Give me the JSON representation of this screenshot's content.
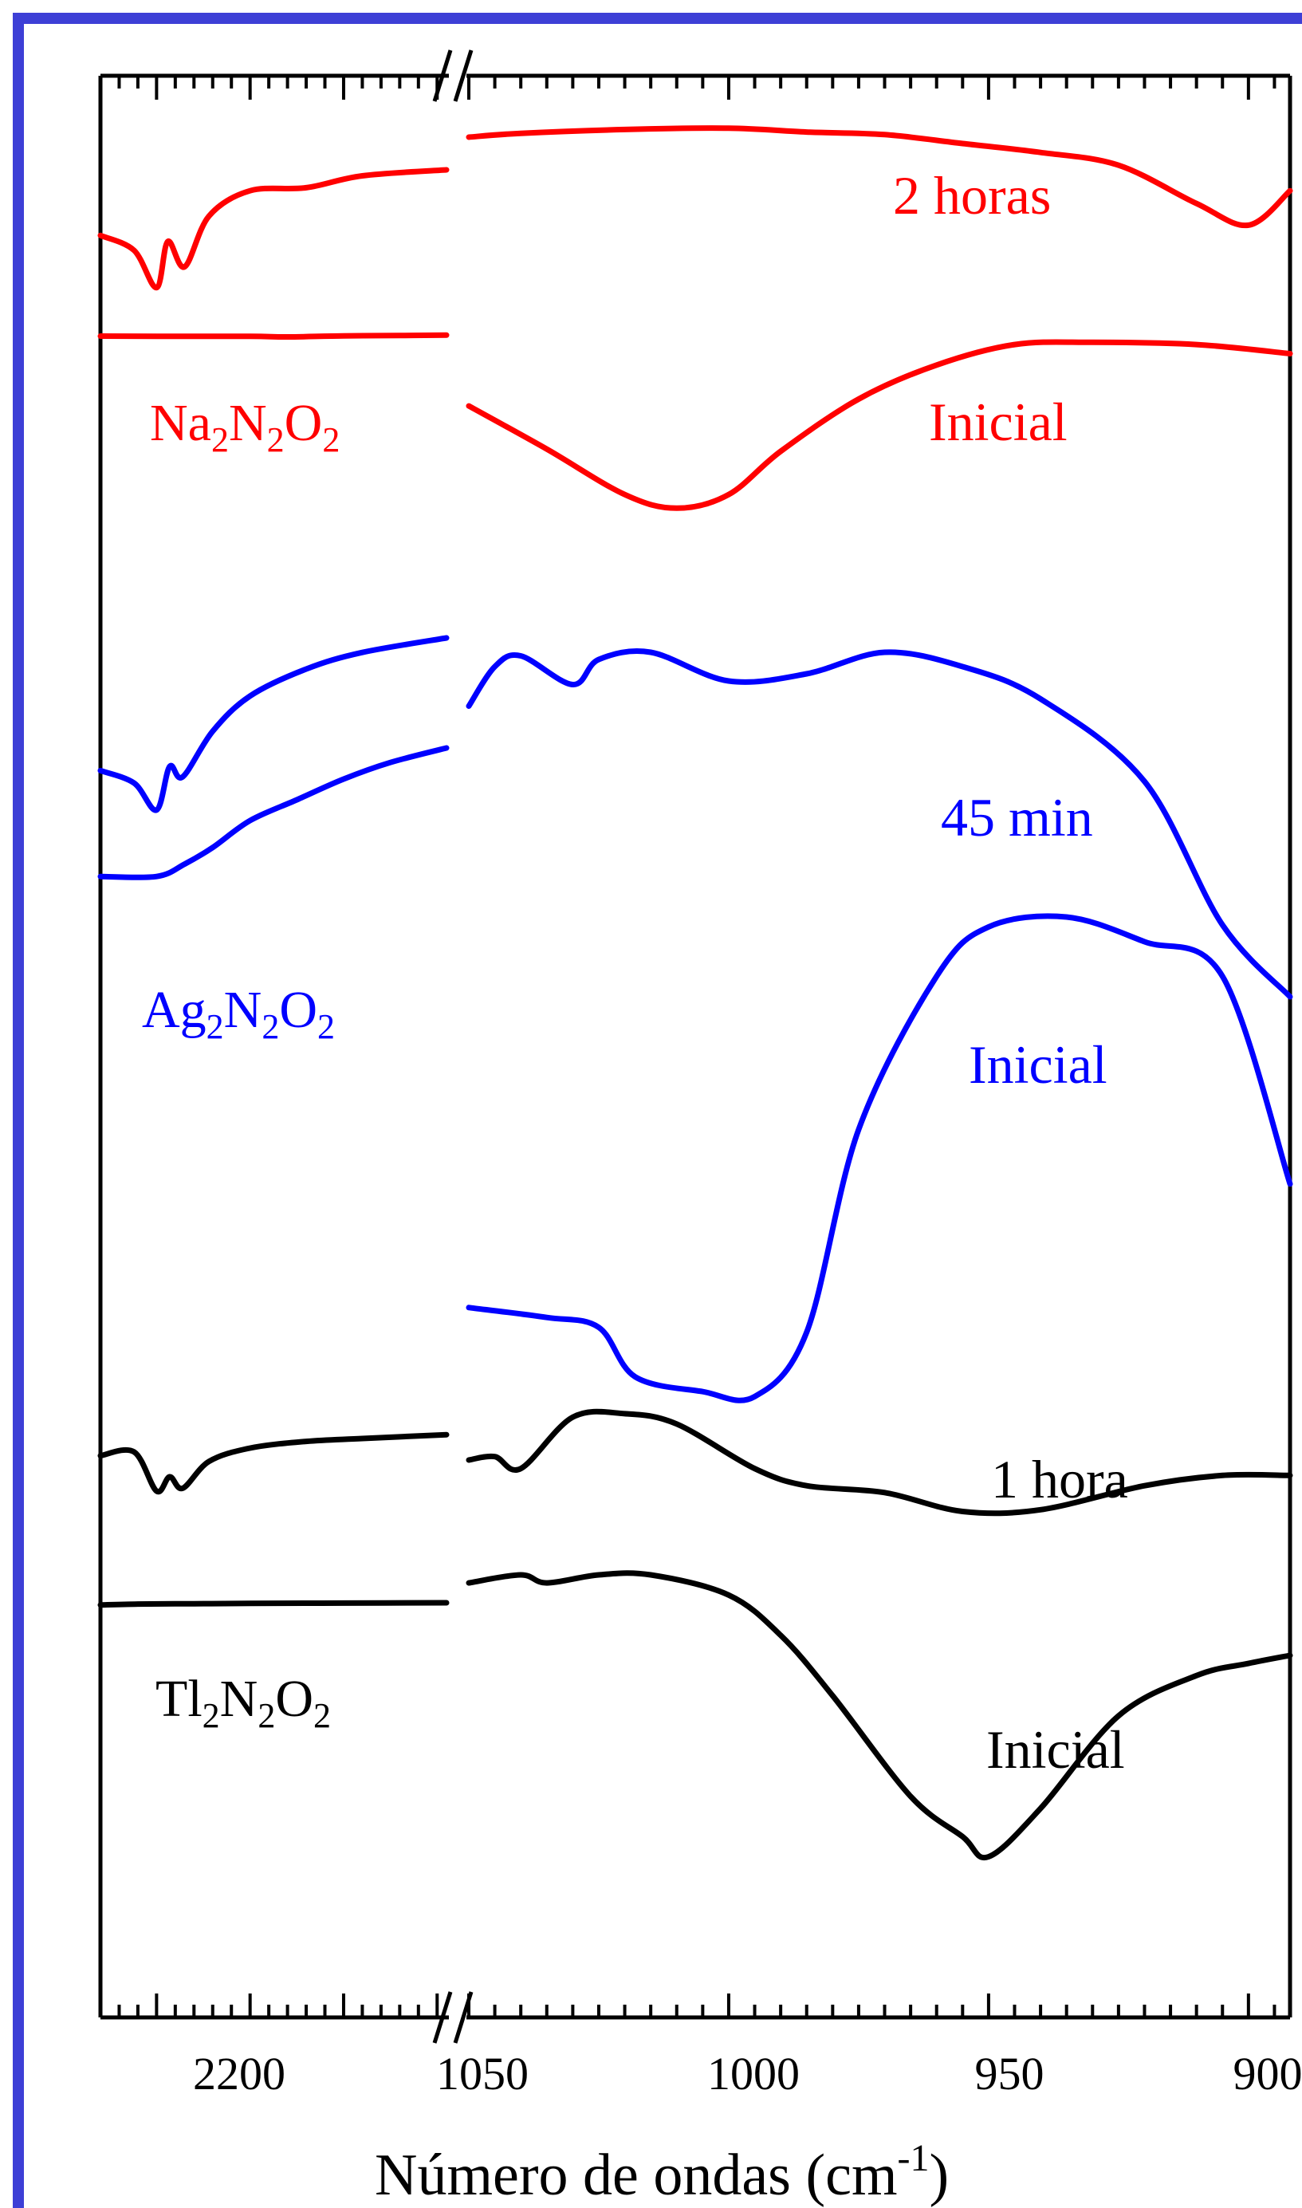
{
  "chart_data": {
    "type": "line",
    "title": "",
    "xlabel_main": "Número de ondas (cm",
    "xlabel_sup": "-1",
    "xlabel_close": ")",
    "ylabel": "",
    "x_axis": {
      "broken": true,
      "left_segment": {
        "range": [
          2280,
          2095
        ],
        "tick_labels": [
          "2200"
        ],
        "tick_values": [
          2200
        ]
      },
      "right_segment": {
        "range": [
          1050,
          892
        ],
        "tick_labels": [
          "1050",
          "1000",
          "950",
          "900"
        ],
        "tick_values": [
          1050,
          1000,
          950,
          900
        ]
      }
    },
    "grid": false,
    "colors": {
      "na": "#ff0000",
      "ag": "#0000ff",
      "tl": "#000000",
      "frame": "#3d3fd6"
    },
    "compound_labels": [
      {
        "base1": "Na",
        "sub1": "2",
        "base2": "N",
        "sub2": "2",
        "base3": "O",
        "sub3": "2",
        "color": "#ff0000"
      },
      {
        "base1": "Ag",
        "sub1": "2",
        "base2": "N",
        "sub2": "2",
        "base3": "O",
        "sub3": "2",
        "color": "#0000ff"
      },
      {
        "base1": "Tl",
        "sub1": "2",
        "base2": "N",
        "sub2": "2",
        "base3": "O",
        "sub3": "2",
        "color": "#000000"
      }
    ],
    "series": [
      {
        "name": "2 horas",
        "compound": "Na2N2O2",
        "color": "#ff0000",
        "left": [
          [
            2280,
            0.44
          ],
          [
            2262,
            0.54
          ],
          [
            2250,
            0.79
          ],
          [
            2244,
            0.48
          ],
          [
            2235,
            0.65
          ],
          [
            2222,
            0.31
          ],
          [
            2200,
            0.14
          ],
          [
            2170,
            0.12
          ],
          [
            2140,
            0.04
          ],
          [
            2095,
            0.0
          ]
        ],
        "right": [
          [
            1050,
            0.2
          ],
          [
            1040,
            0.17
          ],
          [
            1020,
            0.14
          ],
          [
            1000,
            0.13
          ],
          [
            985,
            0.16
          ],
          [
            970,
            0.18
          ],
          [
            955,
            0.25
          ],
          [
            940,
            0.32
          ],
          [
            925,
            0.42
          ],
          [
            910,
            0.72
          ],
          [
            900,
            0.89
          ],
          [
            892,
            0.62
          ]
        ]
      },
      {
        "name": "Inicial",
        "compound": "Na2N2O2",
        "color": "#ff0000",
        "left": [
          [
            2280,
            0.06
          ],
          [
            2250,
            0.07
          ],
          [
            2200,
            0.07
          ],
          [
            2180,
            0.1
          ],
          [
            2150,
            0.05
          ],
          [
            2120,
            0.03
          ],
          [
            2095,
            0.01
          ]
        ],
        "right": [
          [
            1050,
            0.33
          ],
          [
            1035,
            0.52
          ],
          [
            1020,
            0.72
          ],
          [
            1010,
            0.78
          ],
          [
            1000,
            0.72
          ],
          [
            990,
            0.53
          ],
          [
            975,
            0.3
          ],
          [
            960,
            0.15
          ],
          [
            945,
            0.06
          ],
          [
            930,
            0.05
          ],
          [
            910,
            0.06
          ],
          [
            892,
            0.1
          ]
        ]
      },
      {
        "name": "45 min",
        "compound": "Ag2N2O2",
        "color": "#0000ff",
        "left": [
          [
            2280,
            0.64
          ],
          [
            2262,
            0.7
          ],
          [
            2250,
            0.83
          ],
          [
            2243,
            0.62
          ],
          [
            2236,
            0.67
          ],
          [
            2220,
            0.45
          ],
          [
            2200,
            0.28
          ],
          [
            2170,
            0.15
          ],
          [
            2140,
            0.07
          ],
          [
            2095,
            0.0
          ]
        ],
        "right": [
          [
            1050,
            0.19
          ],
          [
            1045,
            0.08
          ],
          [
            1040,
            0.05
          ],
          [
            1030,
            0.13
          ],
          [
            1025,
            0.06
          ],
          [
            1015,
            0.04
          ],
          [
            1000,
            0.12
          ],
          [
            985,
            0.1
          ],
          [
            970,
            0.04
          ],
          [
            955,
            0.08
          ],
          [
            940,
            0.17
          ],
          [
            920,
            0.4
          ],
          [
            905,
            0.8
          ],
          [
            892,
            1.0
          ]
        ]
      },
      {
        "name": "Inicial",
        "compound": "Ag2N2O2",
        "color": "#0000ff",
        "left": [
          [
            2280,
            0.72
          ],
          [
            2250,
            0.72
          ],
          [
            2235,
            0.66
          ],
          [
            2220,
            0.58
          ],
          [
            2200,
            0.45
          ],
          [
            2175,
            0.35
          ],
          [
            2150,
            0.25
          ],
          [
            2125,
            0.17
          ],
          [
            2095,
            0.1
          ]
        ],
        "right": [
          [
            1050,
            0.79
          ],
          [
            1035,
            0.81
          ],
          [
            1025,
            0.83
          ],
          [
            1018,
            0.93
          ],
          [
            1005,
            0.96
          ],
          [
            995,
            0.97
          ],
          [
            985,
            0.84
          ],
          [
            975,
            0.43
          ],
          [
            960,
            0.12
          ],
          [
            950,
            0.02
          ],
          [
            935,
            0.0
          ],
          [
            920,
            0.05
          ],
          [
            905,
            0.12
          ],
          [
            892,
            0.54
          ]
        ]
      },
      {
        "name": "1 hora",
        "compound": "Tl2N2O2",
        "color": "#000000",
        "left": [
          [
            2280,
            0.28
          ],
          [
            2262,
            0.24
          ],
          [
            2250,
            0.65
          ],
          [
            2243,
            0.5
          ],
          [
            2236,
            0.62
          ],
          [
            2222,
            0.34
          ],
          [
            2200,
            0.2
          ],
          [
            2170,
            0.13
          ],
          [
            2140,
            0.1
          ],
          [
            2095,
            0.06
          ]
        ],
        "right": [
          [
            1050,
            0.33
          ],
          [
            1045,
            0.31
          ],
          [
            1040,
            0.38
          ],
          [
            1030,
            0.08
          ],
          [
            1020,
            0.06
          ],
          [
            1010,
            0.12
          ],
          [
            995,
            0.38
          ],
          [
            985,
            0.48
          ],
          [
            970,
            0.52
          ],
          [
            955,
            0.63
          ],
          [
            940,
            0.62
          ],
          [
            920,
            0.48
          ],
          [
            905,
            0.42
          ],
          [
            892,
            0.42
          ]
        ]
      },
      {
        "name": "Inicial",
        "compound": "Tl2N2O2",
        "color": "#000000",
        "left": [
          [
            2280,
            0.07
          ],
          [
            2260,
            0.04
          ],
          [
            2230,
            0.03
          ],
          [
            2200,
            0.02
          ],
          [
            2150,
            0.01
          ],
          [
            2095,
            0.0
          ]
        ],
        "right": [
          [
            1050,
            0.02
          ],
          [
            1040,
            0.0
          ],
          [
            1035,
            0.02
          ],
          [
            1025,
            0.0
          ],
          [
            1015,
            0.0
          ],
          [
            1000,
            0.05
          ],
          [
            990,
            0.15
          ],
          [
            980,
            0.3
          ],
          [
            965,
            0.55
          ],
          [
            955,
            0.65
          ],
          [
            950,
            0.7
          ],
          [
            940,
            0.58
          ],
          [
            925,
            0.35
          ],
          [
            910,
            0.25
          ],
          [
            900,
            0.22
          ],
          [
            892,
            0.2
          ]
        ]
      }
    ],
    "series_labels": [
      {
        "text": "2 horas",
        "color": "#ff0000"
      },
      {
        "text": "Inicial",
        "color": "#ff0000"
      },
      {
        "text": "45 min",
        "color": "#0000ff"
      },
      {
        "text": "Inicial",
        "color": "#0000ff"
      },
      {
        "text": "1 hora",
        "color": "#000000"
      },
      {
        "text": "Inicial",
        "color": "#000000"
      }
    ]
  }
}
